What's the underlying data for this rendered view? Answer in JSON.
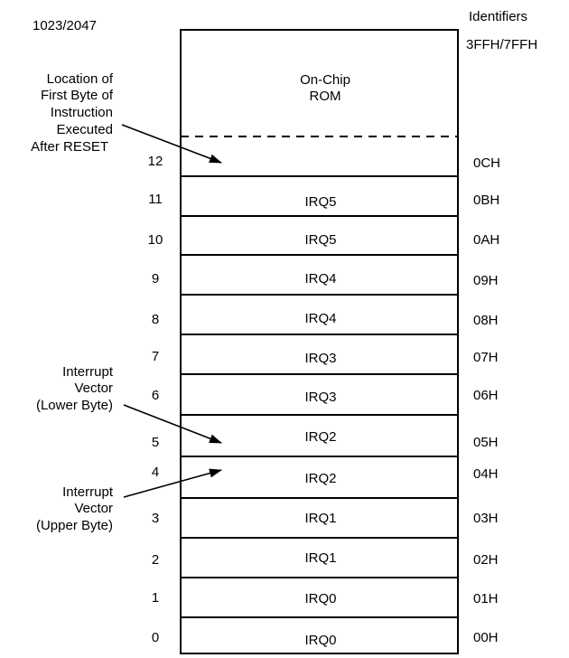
{
  "top_left_address": "1023/2047",
  "header_identifiers": "Identifiers",
  "top_identifier": "3FFH/7FFH",
  "rom_label_line1": "On-Chip",
  "rom_label_line2": "ROM",
  "reset_annotation": [
    "Location of",
    "First Byte of",
    "Instruction",
    "Executed",
    "After RESET"
  ],
  "lower_annotation": [
    "Interrupt",
    "Vector",
    "(Lower Byte)"
  ],
  "upper_annotation": [
    "Interrupt",
    "Vector",
    "(Upper Byte)"
  ],
  "rows": [
    {
      "addr": "12",
      "label": "",
      "id": "0CH"
    },
    {
      "addr": "11",
      "label": "IRQ5",
      "id": "0BH"
    },
    {
      "addr": "10",
      "label": "IRQ5",
      "id": "0AH"
    },
    {
      "addr": "9",
      "label": "IRQ4",
      "id": "09H"
    },
    {
      "addr": "8",
      "label": "IRQ4",
      "id": "08H"
    },
    {
      "addr": "7",
      "label": "IRQ3",
      "id": "07H"
    },
    {
      "addr": "6",
      "label": "IRQ3",
      "id": "06H"
    },
    {
      "addr": "5",
      "label": "IRQ2",
      "id": "05H"
    },
    {
      "addr": "4",
      "label": "IRQ2",
      "id": "04H"
    },
    {
      "addr": "3",
      "label": "IRQ1",
      "id": "03H"
    },
    {
      "addr": "2",
      "label": "IRQ1",
      "id": "02H"
    },
    {
      "addr": "1",
      "label": "IRQ0",
      "id": "01H"
    },
    {
      "addr": "0",
      "label": "IRQ0",
      "id": "00H"
    }
  ]
}
